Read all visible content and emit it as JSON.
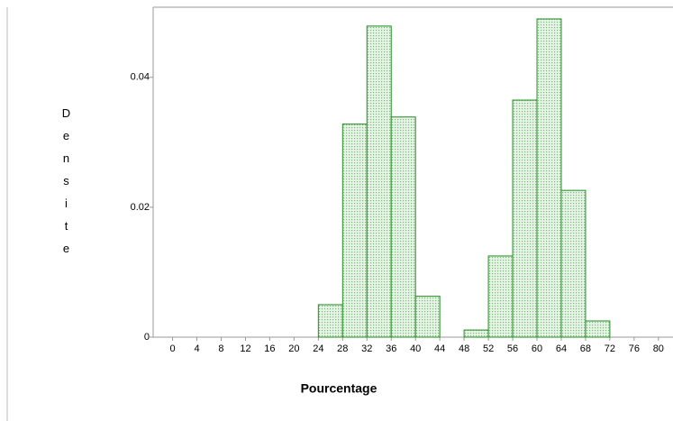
{
  "chart_data": {
    "type": "histogram",
    "xlabel": "Pourcentage",
    "ylabel": "Densite",
    "bins": [
      24,
      28,
      32,
      36,
      40,
      44,
      48,
      52,
      56,
      60,
      64,
      68,
      72
    ],
    "values": [
      0.005,
      0.0328,
      0.0479,
      0.0339,
      0.0063,
      0,
      0.0011,
      0.0125,
      0.0365,
      0.049,
      0.0226,
      0.0025
    ],
    "color": "#228b22",
    "xlim": [
      -3.2,
      82.4
    ],
    "ylim": [
      0,
      0.0508
    ],
    "xticks": [
      0,
      4,
      8,
      12,
      16,
      20,
      24,
      28,
      32,
      36,
      40,
      44,
      48,
      52,
      56,
      60,
      64,
      68,
      72,
      76,
      80
    ],
    "yticks": [
      0,
      0.02,
      0.04
    ]
  }
}
